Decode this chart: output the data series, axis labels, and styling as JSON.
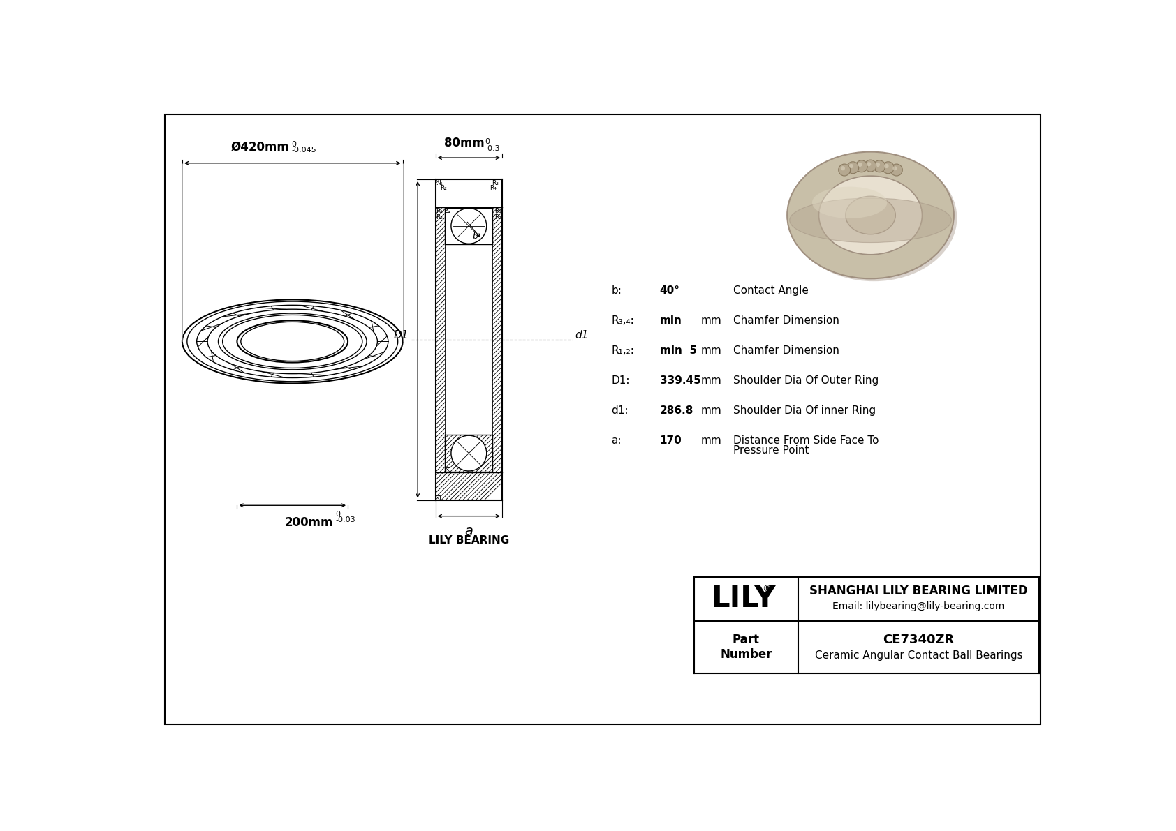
{
  "bg_color": "#ffffff",
  "title": "CE7340ZR",
  "subtitle": "Ceramic Angular Contact Ball Bearings",
  "company": "SHANGHAI LILY BEARING LIMITED",
  "email": "Email: lilybearing@lily-bearing.com",
  "lily_bearing_label": "LILY BEARING",
  "dim_outer": "Ø420mm",
  "dim_outer_tol": "-0.045",
  "dim_outer_sup": "0",
  "dim_width": "80mm",
  "dim_width_tol": "-0.3",
  "dim_width_sup": "0",
  "dim_inner": "200mm",
  "dim_inner_tol": "-0.03",
  "dim_inner_sup": "0",
  "params": [
    {
      "label": "b:",
      "value": "40°",
      "unit": "",
      "desc": "Contact Angle",
      "desc2": ""
    },
    {
      "label": "R₃,₄:",
      "value": "min",
      "unit": "mm",
      "desc": "Chamfer Dimension",
      "desc2": ""
    },
    {
      "label": "R₁,₂:",
      "value": "min  5",
      "unit": "mm",
      "desc": "Chamfer Dimension",
      "desc2": ""
    },
    {
      "label": "D1:",
      "value": "339.45",
      "unit": "mm",
      "desc": "Shoulder Dia Of Outer Ring",
      "desc2": ""
    },
    {
      "label": "d1:",
      "value": "286.8",
      "unit": "mm",
      "desc": "Shoulder Dia Of inner Ring",
      "desc2": ""
    },
    {
      "label": "a:",
      "value": "170",
      "unit": "mm",
      "desc": "Distance From Side Face To",
      "desc2": "Pressure Point"
    }
  ],
  "bearing_color": "#c8bfa8",
  "bearing_shadow": "#a09080",
  "bearing_light": "#ddd5c0",
  "bearing_hole": "#e8e0d0"
}
